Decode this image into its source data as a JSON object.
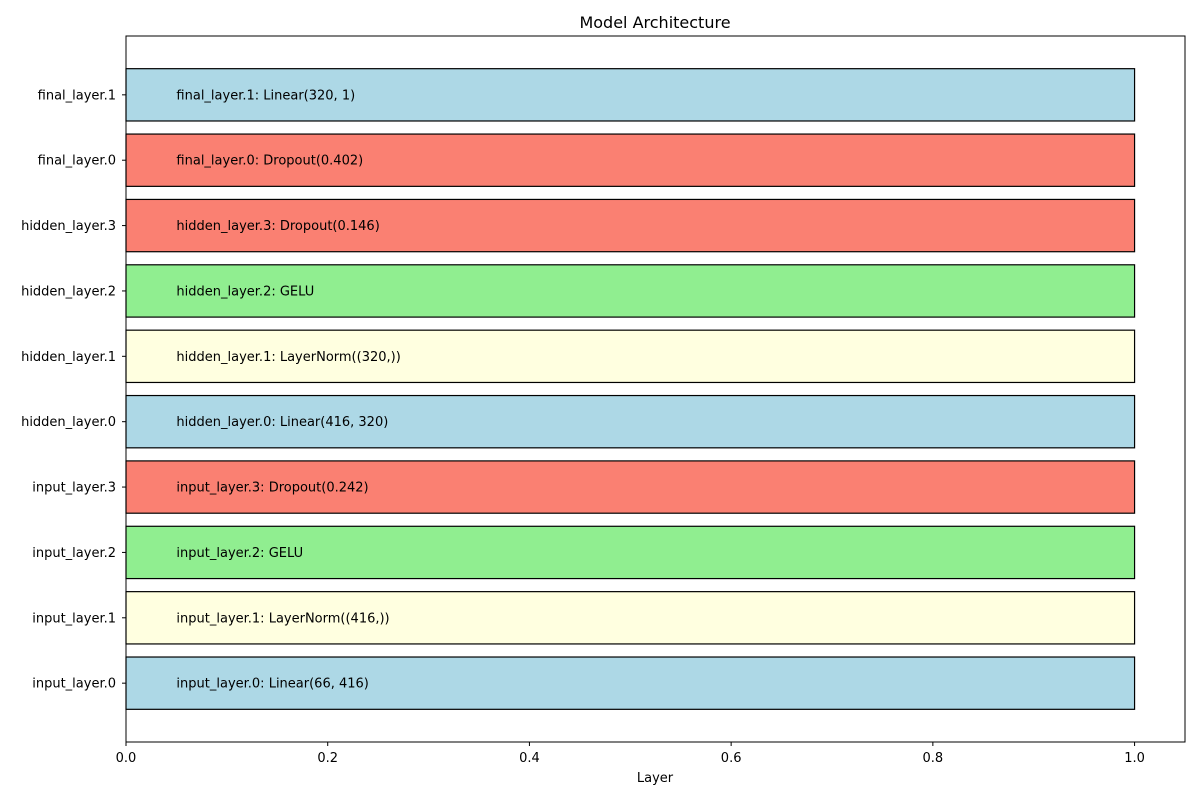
{
  "chart_data": {
    "type": "bar",
    "orientation": "horizontal",
    "title": "Model Architecture",
    "xlabel": "Layer",
    "ylabel": "",
    "xlim": [
      0,
      1.05
    ],
    "xticks": [
      "0.0",
      "0.2",
      "0.4",
      "0.6",
      "0.8",
      "1.0"
    ],
    "categories": [
      "input_layer.0",
      "input_layer.1",
      "input_layer.2",
      "input_layer.3",
      "hidden_layer.0",
      "hidden_layer.1",
      "hidden_layer.2",
      "hidden_layer.3",
      "final_layer.0",
      "final_layer.1"
    ],
    "values": [
      1,
      1,
      1,
      1,
      1,
      1,
      1,
      1,
      1,
      1
    ],
    "bar_labels": [
      "input_layer.0: Linear(66, 416)",
      "input_layer.1: LayerNorm((416,))",
      "input_layer.2: GELU",
      "input_layer.3: Dropout(0.242)",
      "hidden_layer.0: Linear(416, 320)",
      "hidden_layer.1: LayerNorm((320,))",
      "hidden_layer.2: GELU",
      "hidden_layer.3: Dropout(0.146)",
      "final_layer.0: Dropout(0.402)",
      "final_layer.1: Linear(320, 1)"
    ],
    "colors": [
      "#add8e6",
      "#ffffe0",
      "#90ee90",
      "#fa8072",
      "#add8e6",
      "#ffffe0",
      "#90ee90",
      "#fa8072",
      "#fa8072",
      "#add8e6"
    ],
    "edge_color": "#000000",
    "grid": false,
    "legend": "none"
  }
}
